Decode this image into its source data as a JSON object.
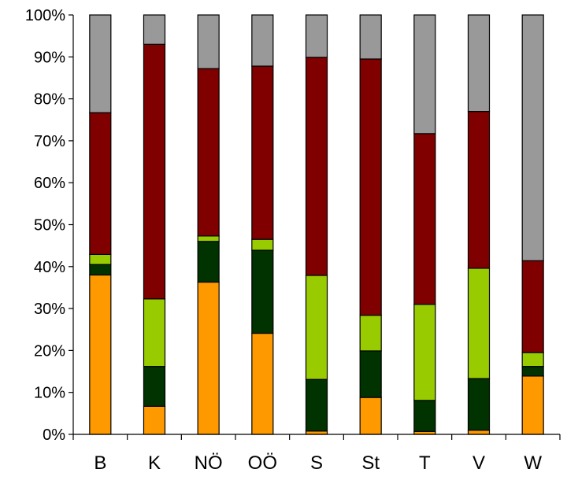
{
  "chart_data": {
    "type": "bar",
    "stacked": true,
    "normalized_percent": true,
    "categories": [
      "B",
      "K",
      "NÖ",
      "OÖ",
      "S",
      "St",
      "T",
      "V",
      "W"
    ],
    "series": [
      {
        "color": "#FF9900",
        "values": [
          38.0,
          6.7,
          36.3,
          24.1,
          0.8,
          8.8,
          0.7,
          1.0,
          13.9
        ]
      },
      {
        "color": "#003300",
        "values": [
          2.5,
          9.5,
          9.7,
          19.8,
          12.3,
          11.1,
          7.4,
          12.3,
          2.3
        ]
      },
      {
        "color": "#99CC00",
        "values": [
          2.4,
          16.1,
          1.3,
          2.6,
          24.8,
          8.5,
          22.9,
          26.3,
          3.3
        ]
      },
      {
        "color": "#800000",
        "values": [
          33.8,
          60.7,
          39.9,
          41.3,
          52.0,
          61.1,
          40.7,
          37.4,
          21.9
        ]
      },
      {
        "color": "#999999",
        "values": [
          23.3,
          7.0,
          12.8,
          12.2,
          10.1,
          10.5,
          28.3,
          23.0,
          58.6
        ]
      }
    ],
    "y_ticks": [
      "0%",
      "10%",
      "20%",
      "30%",
      "40%",
      "50%",
      "60%",
      "70%",
      "80%",
      "90%",
      "100%"
    ],
    "ylim": [
      0,
      100
    ],
    "grid": false,
    "legend": "none"
  }
}
